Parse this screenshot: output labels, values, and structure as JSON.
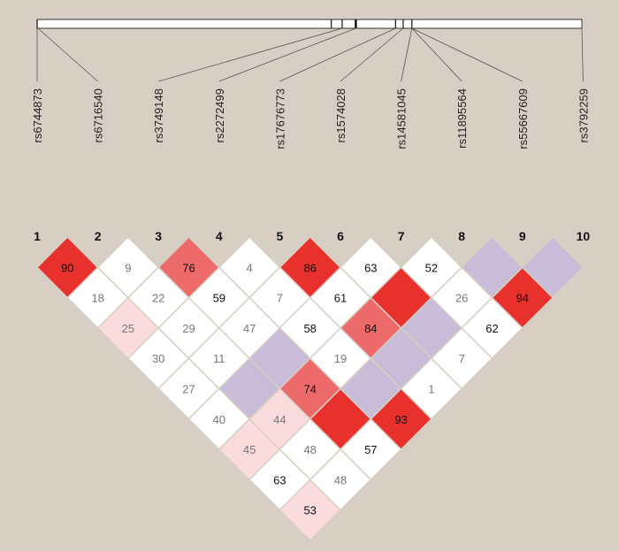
{
  "snps": [
    {
      "index": "1",
      "name": "rs6744873"
    },
    {
      "index": "2",
      "name": "rs6716540"
    },
    {
      "index": "3",
      "name": "rs3749148"
    },
    {
      "index": "4",
      "name": "rs2272499"
    },
    {
      "index": "5",
      "name": "rs17676773"
    },
    {
      "index": "6",
      "name": "rs1574028"
    },
    {
      "index": "7",
      "name": "rs14581045"
    },
    {
      "index": "8",
      "name": "rs11895564"
    },
    {
      "index": "9",
      "name": "rs55667609"
    },
    {
      "index": "10",
      "name": "rs3792259"
    }
  ],
  "gene_track": {
    "range": [
      0,
      100
    ],
    "marker_positions": [
      0.0,
      54.0,
      56.0,
      58.5,
      65.8,
      67.2,
      68.8
    ]
  },
  "ld_scale": {
    "strong": "#e8312c",
    "high": "#ec6a6a",
    "low": "#fbdcdc",
    "none": "#ffffff",
    "lod_low": "#c8bcd8",
    "text_dark": "#111111",
    "text_light": "#777777"
  },
  "ld_cells": [
    {
      "pair": [
        1,
        2
      ],
      "value": "90",
      "fill": "strong",
      "text": "dark"
    },
    {
      "pair": [
        2,
        3
      ],
      "value": "9",
      "fill": "none",
      "text": "light"
    },
    {
      "pair": [
        3,
        4
      ],
      "value": "76",
      "fill": "high",
      "text": "dark"
    },
    {
      "pair": [
        4,
        5
      ],
      "value": "4",
      "fill": "none",
      "text": "light"
    },
    {
      "pair": [
        5,
        6
      ],
      "value": "86",
      "fill": "strong",
      "text": "dark"
    },
    {
      "pair": [
        6,
        7
      ],
      "value": "63",
      "fill": "none",
      "text": "dark"
    },
    {
      "pair": [
        7,
        8
      ],
      "value": "52",
      "fill": "none",
      "text": "dark"
    },
    {
      "pair": [
        8,
        9
      ],
      "value": "",
      "fill": "lod_low",
      "text": "dark"
    },
    {
      "pair": [
        9,
        10
      ],
      "value": "",
      "fill": "lod_low",
      "text": "dark"
    },
    {
      "pair": [
        1,
        3
      ],
      "value": "18",
      "fill": "none",
      "text": "light"
    },
    {
      "pair": [
        2,
        4
      ],
      "value": "22",
      "fill": "none",
      "text": "light"
    },
    {
      "pair": [
        3,
        5
      ],
      "value": "59",
      "fill": "none",
      "text": "dark"
    },
    {
      "pair": [
        4,
        6
      ],
      "value": "7",
      "fill": "none",
      "text": "light"
    },
    {
      "pair": [
        5,
        7
      ],
      "value": "61",
      "fill": "none",
      "text": "dark"
    },
    {
      "pair": [
        6,
        8
      ],
      "value": "",
      "fill": "strong",
      "text": "dark"
    },
    {
      "pair": [
        7,
        9
      ],
      "value": "26",
      "fill": "none",
      "text": "light"
    },
    {
      "pair": [
        8,
        10
      ],
      "value": "94",
      "fill": "strong",
      "text": "dark"
    },
    {
      "pair": [
        1,
        4
      ],
      "value": "25",
      "fill": "low",
      "text": "light"
    },
    {
      "pair": [
        2,
        5
      ],
      "value": "29",
      "fill": "none",
      "text": "light"
    },
    {
      "pair": [
        3,
        6
      ],
      "value": "47",
      "fill": "none",
      "text": "light"
    },
    {
      "pair": [
        4,
        7
      ],
      "value": "58",
      "fill": "none",
      "text": "dark"
    },
    {
      "pair": [
        5,
        8
      ],
      "value": "84",
      "fill": "high",
      "text": "dark"
    },
    {
      "pair": [
        6,
        9
      ],
      "value": "",
      "fill": "lod_low",
      "text": "dark"
    },
    {
      "pair": [
        7,
        10
      ],
      "value": "62",
      "fill": "none",
      "text": "dark"
    },
    {
      "pair": [
        1,
        5
      ],
      "value": "30",
      "fill": "none",
      "text": "light"
    },
    {
      "pair": [
        2,
        6
      ],
      "value": "11",
      "fill": "none",
      "text": "light"
    },
    {
      "pair": [
        3,
        7
      ],
      "value": "",
      "fill": "lod_low",
      "text": "dark"
    },
    {
      "pair": [
        4,
        8
      ],
      "value": "19",
      "fill": "none",
      "text": "light"
    },
    {
      "pair": [
        5,
        9
      ],
      "value": "",
      "fill": "lod_low",
      "text": "dark"
    },
    {
      "pair": [
        6,
        10
      ],
      "value": "7",
      "fill": "none",
      "text": "light"
    },
    {
      "pair": [
        1,
        6
      ],
      "value": "27",
      "fill": "none",
      "text": "light"
    },
    {
      "pair": [
        2,
        7
      ],
      "value": "",
      "fill": "lod_low",
      "text": "dark"
    },
    {
      "pair": [
        3,
        8
      ],
      "value": "74",
      "fill": "high",
      "text": "dark"
    },
    {
      "pair": [
        4,
        9
      ],
      "value": "",
      "fill": "lod_low",
      "text": "dark"
    },
    {
      "pair": [
        5,
        10
      ],
      "value": "1",
      "fill": "none",
      "text": "light"
    },
    {
      "pair": [
        1,
        7
      ],
      "value": "40",
      "fill": "none",
      "text": "light"
    },
    {
      "pair": [
        2,
        8
      ],
      "value": "44",
      "fill": "low",
      "text": "light"
    },
    {
      "pair": [
        3,
        9
      ],
      "value": "",
      "fill": "strong",
      "text": "dark"
    },
    {
      "pair": [
        4,
        10
      ],
      "value": "93",
      "fill": "strong",
      "text": "dark"
    },
    {
      "pair": [
        1,
        8
      ],
      "value": "45",
      "fill": "low",
      "text": "light"
    },
    {
      "pair": [
        2,
        9
      ],
      "value": "48",
      "fill": "none",
      "text": "light"
    },
    {
      "pair": [
        3,
        10
      ],
      "value": "57",
      "fill": "none",
      "text": "dark"
    },
    {
      "pair": [
        1,
        9
      ],
      "value": "63",
      "fill": "none",
      "text": "dark"
    },
    {
      "pair": [
        2,
        10
      ],
      "value": "48",
      "fill": "none",
      "text": "light"
    },
    {
      "pair": [
        1,
        10
      ],
      "value": "53",
      "fill": "low",
      "text": "dark"
    }
  ]
}
